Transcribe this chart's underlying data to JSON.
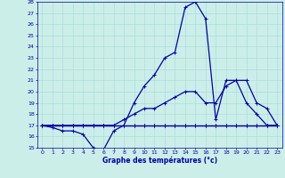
{
  "xlabel": "Graphe des températures (°c)",
  "bg_color": "#cceee8",
  "line_color": "#0000aa",
  "grid_color": "#aadddd",
  "xlim": [
    -0.5,
    23.5
  ],
  "ylim": [
    15,
    28
  ],
  "xticks": [
    0,
    1,
    2,
    3,
    4,
    5,
    6,
    7,
    8,
    9,
    10,
    11,
    12,
    13,
    14,
    15,
    16,
    17,
    18,
    19,
    20,
    21,
    22,
    23
  ],
  "yticks": [
    15,
    16,
    17,
    18,
    19,
    20,
    21,
    22,
    23,
    24,
    25,
    26,
    27,
    28
  ],
  "series": [
    [
      17,
      17,
      17,
      17,
      17,
      17,
      17,
      17,
      17,
      17,
      17,
      17,
      17,
      17,
      17,
      17,
      17,
      17,
      17,
      17,
      17,
      17,
      17,
      17
    ],
    [
      17,
      16.8,
      16.5,
      16.5,
      16.2,
      15.0,
      14.8,
      16.5,
      17.0,
      19.0,
      20.5,
      21.5,
      23.0,
      23.5,
      27.5,
      28.0,
      26.5,
      17.5,
      21.0,
      21.0,
      19.0,
      18.0,
      17.0,
      17.0
    ],
    [
      17,
      17,
      17,
      17,
      17,
      17,
      17,
      17,
      17.5,
      18.0,
      18.5,
      18.5,
      19.0,
      19.5,
      20.0,
      20.0,
      19.0,
      19.0,
      20.5,
      21.0,
      21.0,
      19.0,
      18.5,
      17.0
    ],
    [
      17,
      17,
      17,
      17,
      17,
      17,
      17,
      17,
      17,
      17,
      17,
      17,
      17,
      17,
      17,
      17,
      17,
      17,
      17,
      17,
      17,
      17,
      17,
      17
    ]
  ]
}
